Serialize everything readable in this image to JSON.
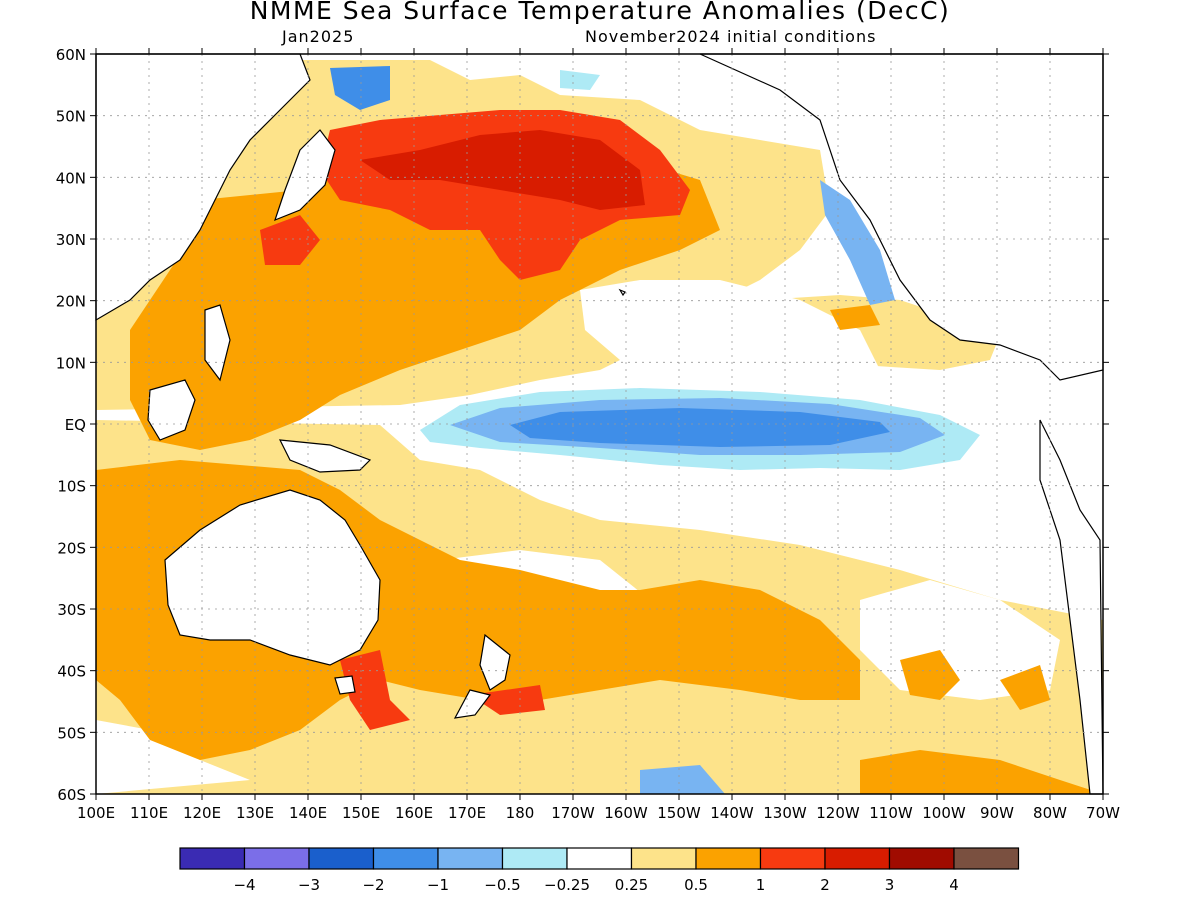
{
  "header": {
    "title": "NMME Sea Surface Temperature Anomalies (DecC)",
    "target_month": "Jan2025",
    "initial_conditions": "November2024 initial conditions"
  },
  "map": {
    "lat_labels": [
      "60N",
      "50N",
      "40N",
      "30N",
      "20N",
      "10N",
      "EQ",
      "10S",
      "20S",
      "30S",
      "40S",
      "50S",
      "60S"
    ],
    "lon_labels": [
      "100E",
      "110E",
      "120E",
      "130E",
      "140E",
      "150E",
      "160E",
      "170E",
      "180",
      "170W",
      "160W",
      "150W",
      "140W",
      "130W",
      "120W",
      "110W",
      "100W",
      "90W",
      "80W",
      "70W"
    ]
  },
  "colorbar": {
    "colors": [
      "#3a2bb3",
      "#7b6ee8",
      "#1a5fcc",
      "#3f8ee8",
      "#78b4f2",
      "#aeeaf5",
      "#ffffff",
      "#fde38a",
      "#fba200",
      "#f73a10",
      "#d81c00",
      "#a00b00",
      "#7a5040"
    ],
    "labels": [
      "−4",
      "−3",
      "−2",
      "−1",
      "−0.5",
      "−0.25",
      "0.25",
      "0.5",
      "1",
      "2",
      "3",
      "4"
    ]
  }
}
